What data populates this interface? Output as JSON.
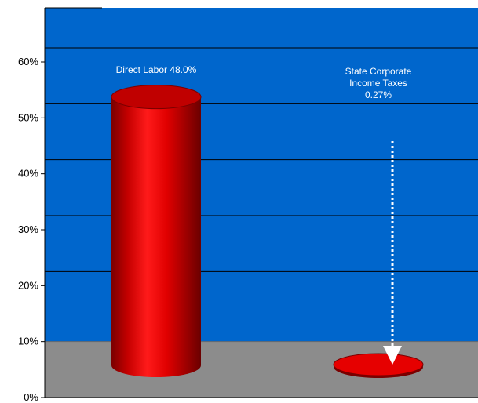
{
  "chart_data": {
    "type": "bar",
    "title": "",
    "xlabel": "",
    "ylabel": "",
    "ylim": [
      0,
      70
    ],
    "yticks": [
      0,
      10,
      20,
      30,
      40,
      50,
      60
    ],
    "ytick_labels": [
      "0%",
      "10%",
      "20%",
      "30%",
      "40%",
      "50%",
      "60%"
    ],
    "grid": true,
    "style": "3d-cylinder",
    "floor_level": 10,
    "categories": [
      "Direct Labor",
      "State Corporate Income Taxes"
    ],
    "values": [
      48.0,
      0.27
    ],
    "data_labels": [
      [
        "Direct Labor  48.0%"
      ],
      [
        "State Corporate",
        "Income Taxes",
        "0.27%"
      ]
    ],
    "annotations": [
      {
        "type": "dotted-arrow",
        "target": "State Corporate Income Taxes",
        "color": "#ffffff"
      }
    ],
    "colors": {
      "wall": "#0066cc",
      "floor": "#8c8c8c",
      "bar": "#e60000",
      "bar_dark": "#8a0000",
      "gridline": "#000000",
      "label": "#ffffff"
    }
  }
}
